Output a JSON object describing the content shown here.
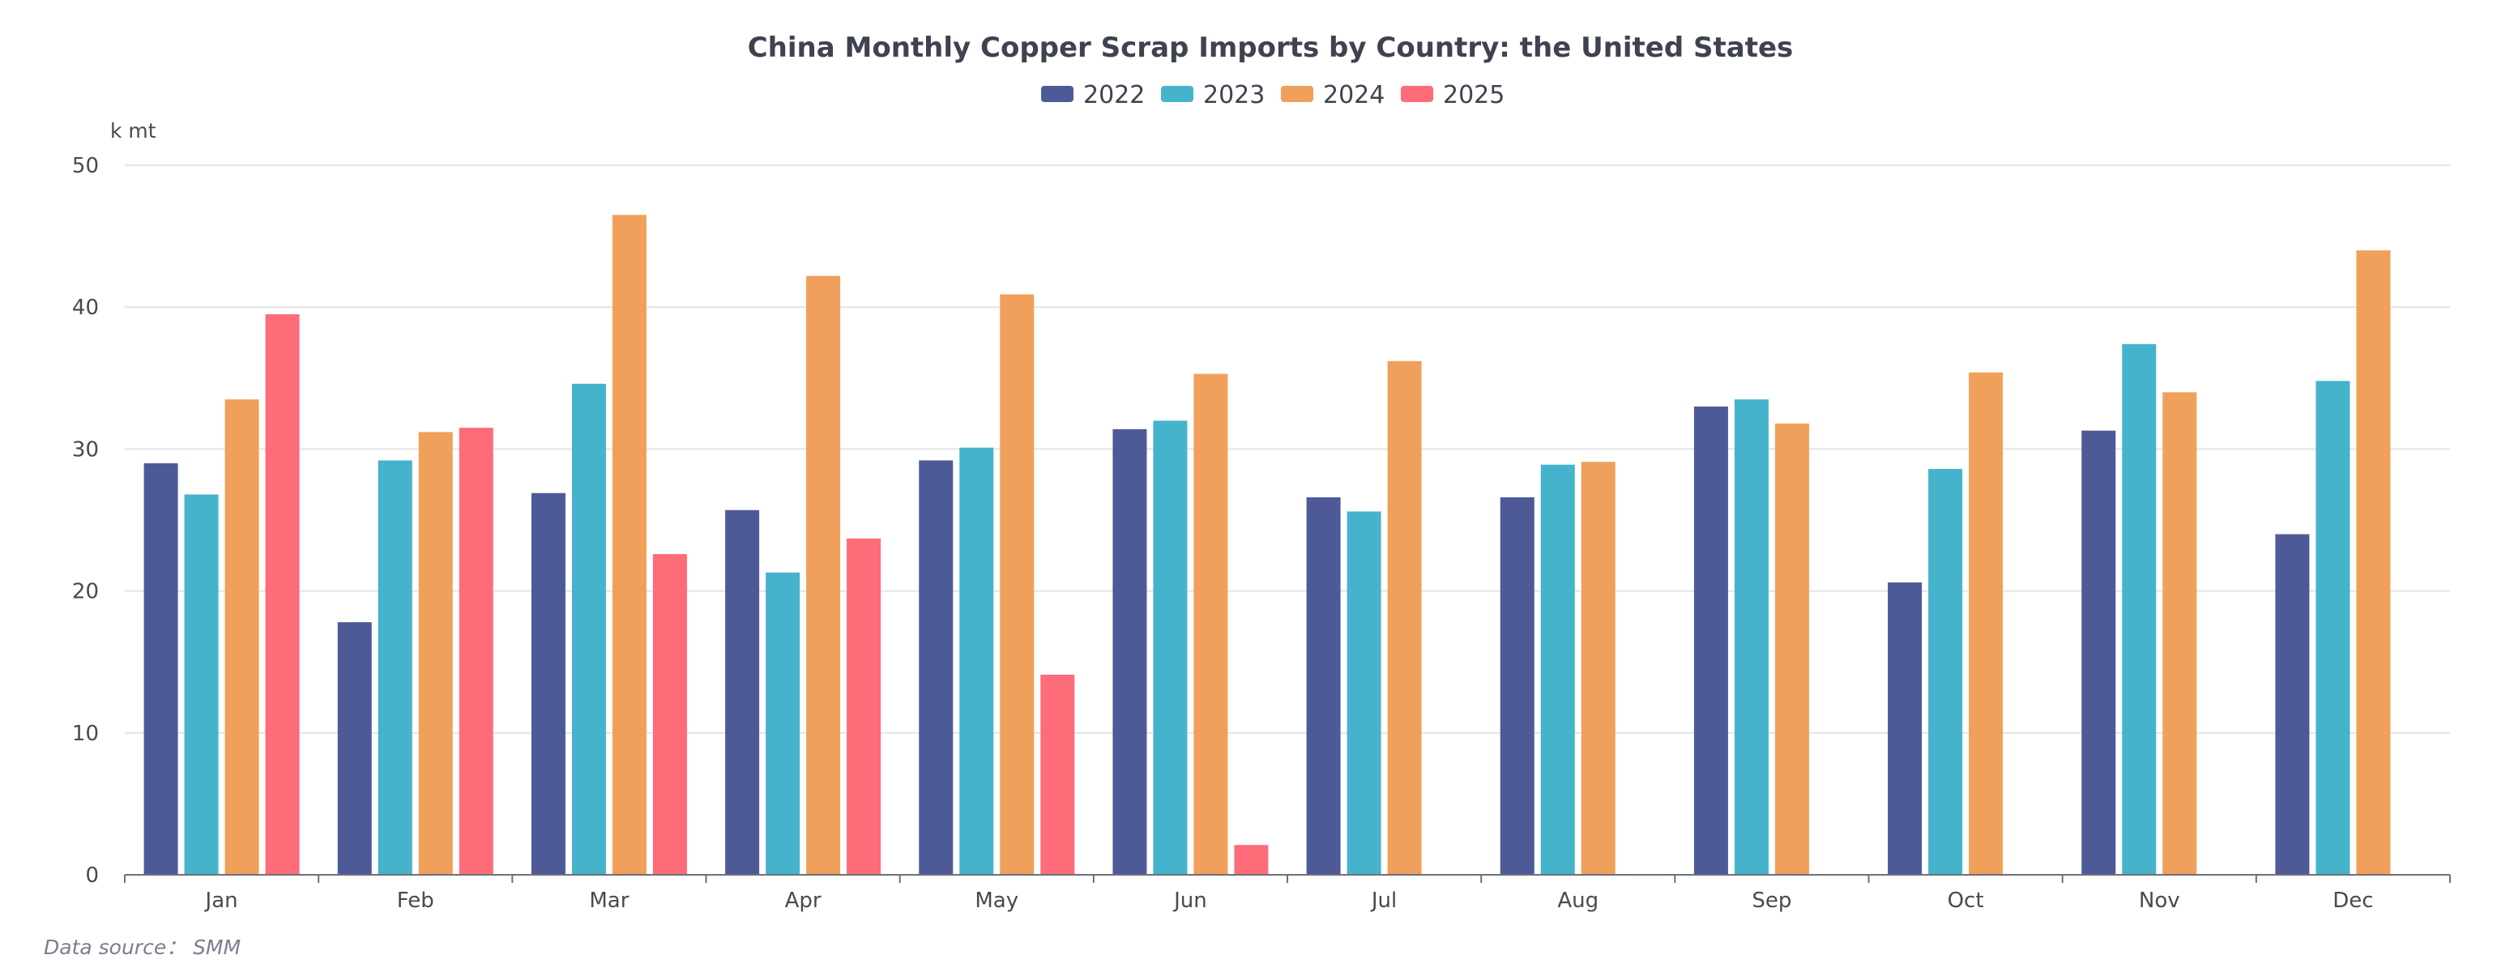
{
  "chart_data": {
    "type": "bar",
    "title": "China Monthly Copper Scrap Imports by Country: the United States",
    "ylabel": "k mt",
    "xlabel": "",
    "ylim": [
      0,
      50
    ],
    "yticks": [
      0,
      10,
      20,
      30,
      40,
      50
    ],
    "grid": true,
    "legend_position": "top-center",
    "categories": [
      "Jan",
      "Feb",
      "Mar",
      "Apr",
      "May",
      "Jun",
      "Jul",
      "Aug",
      "Sep",
      "Oct",
      "Nov",
      "Dec"
    ],
    "series": [
      {
        "name": "2022",
        "color": "#4e5a98",
        "values": [
          29.0,
          17.8,
          26.9,
          25.7,
          29.2,
          31.4,
          26.6,
          26.6,
          33.0,
          20.6,
          31.3,
          24.0
        ]
      },
      {
        "name": "2023",
        "color": "#46b3cc",
        "values": [
          26.8,
          29.2,
          34.6,
          21.3,
          30.1,
          32.0,
          25.6,
          28.9,
          33.5,
          28.6,
          37.4,
          34.8
        ]
      },
      {
        "name": "2024",
        "color": "#f0a05a",
        "values": [
          33.5,
          31.2,
          46.5,
          42.2,
          40.9,
          35.3,
          36.2,
          29.1,
          31.8,
          35.4,
          34.0,
          44.0
        ]
      },
      {
        "name": "2025",
        "color": "#fe6b79",
        "values": [
          39.5,
          31.5,
          22.6,
          23.7,
          14.1,
          2.1,
          null,
          null,
          null,
          null,
          null,
          null
        ]
      }
    ]
  },
  "source": {
    "text": "Data source： SMM"
  }
}
